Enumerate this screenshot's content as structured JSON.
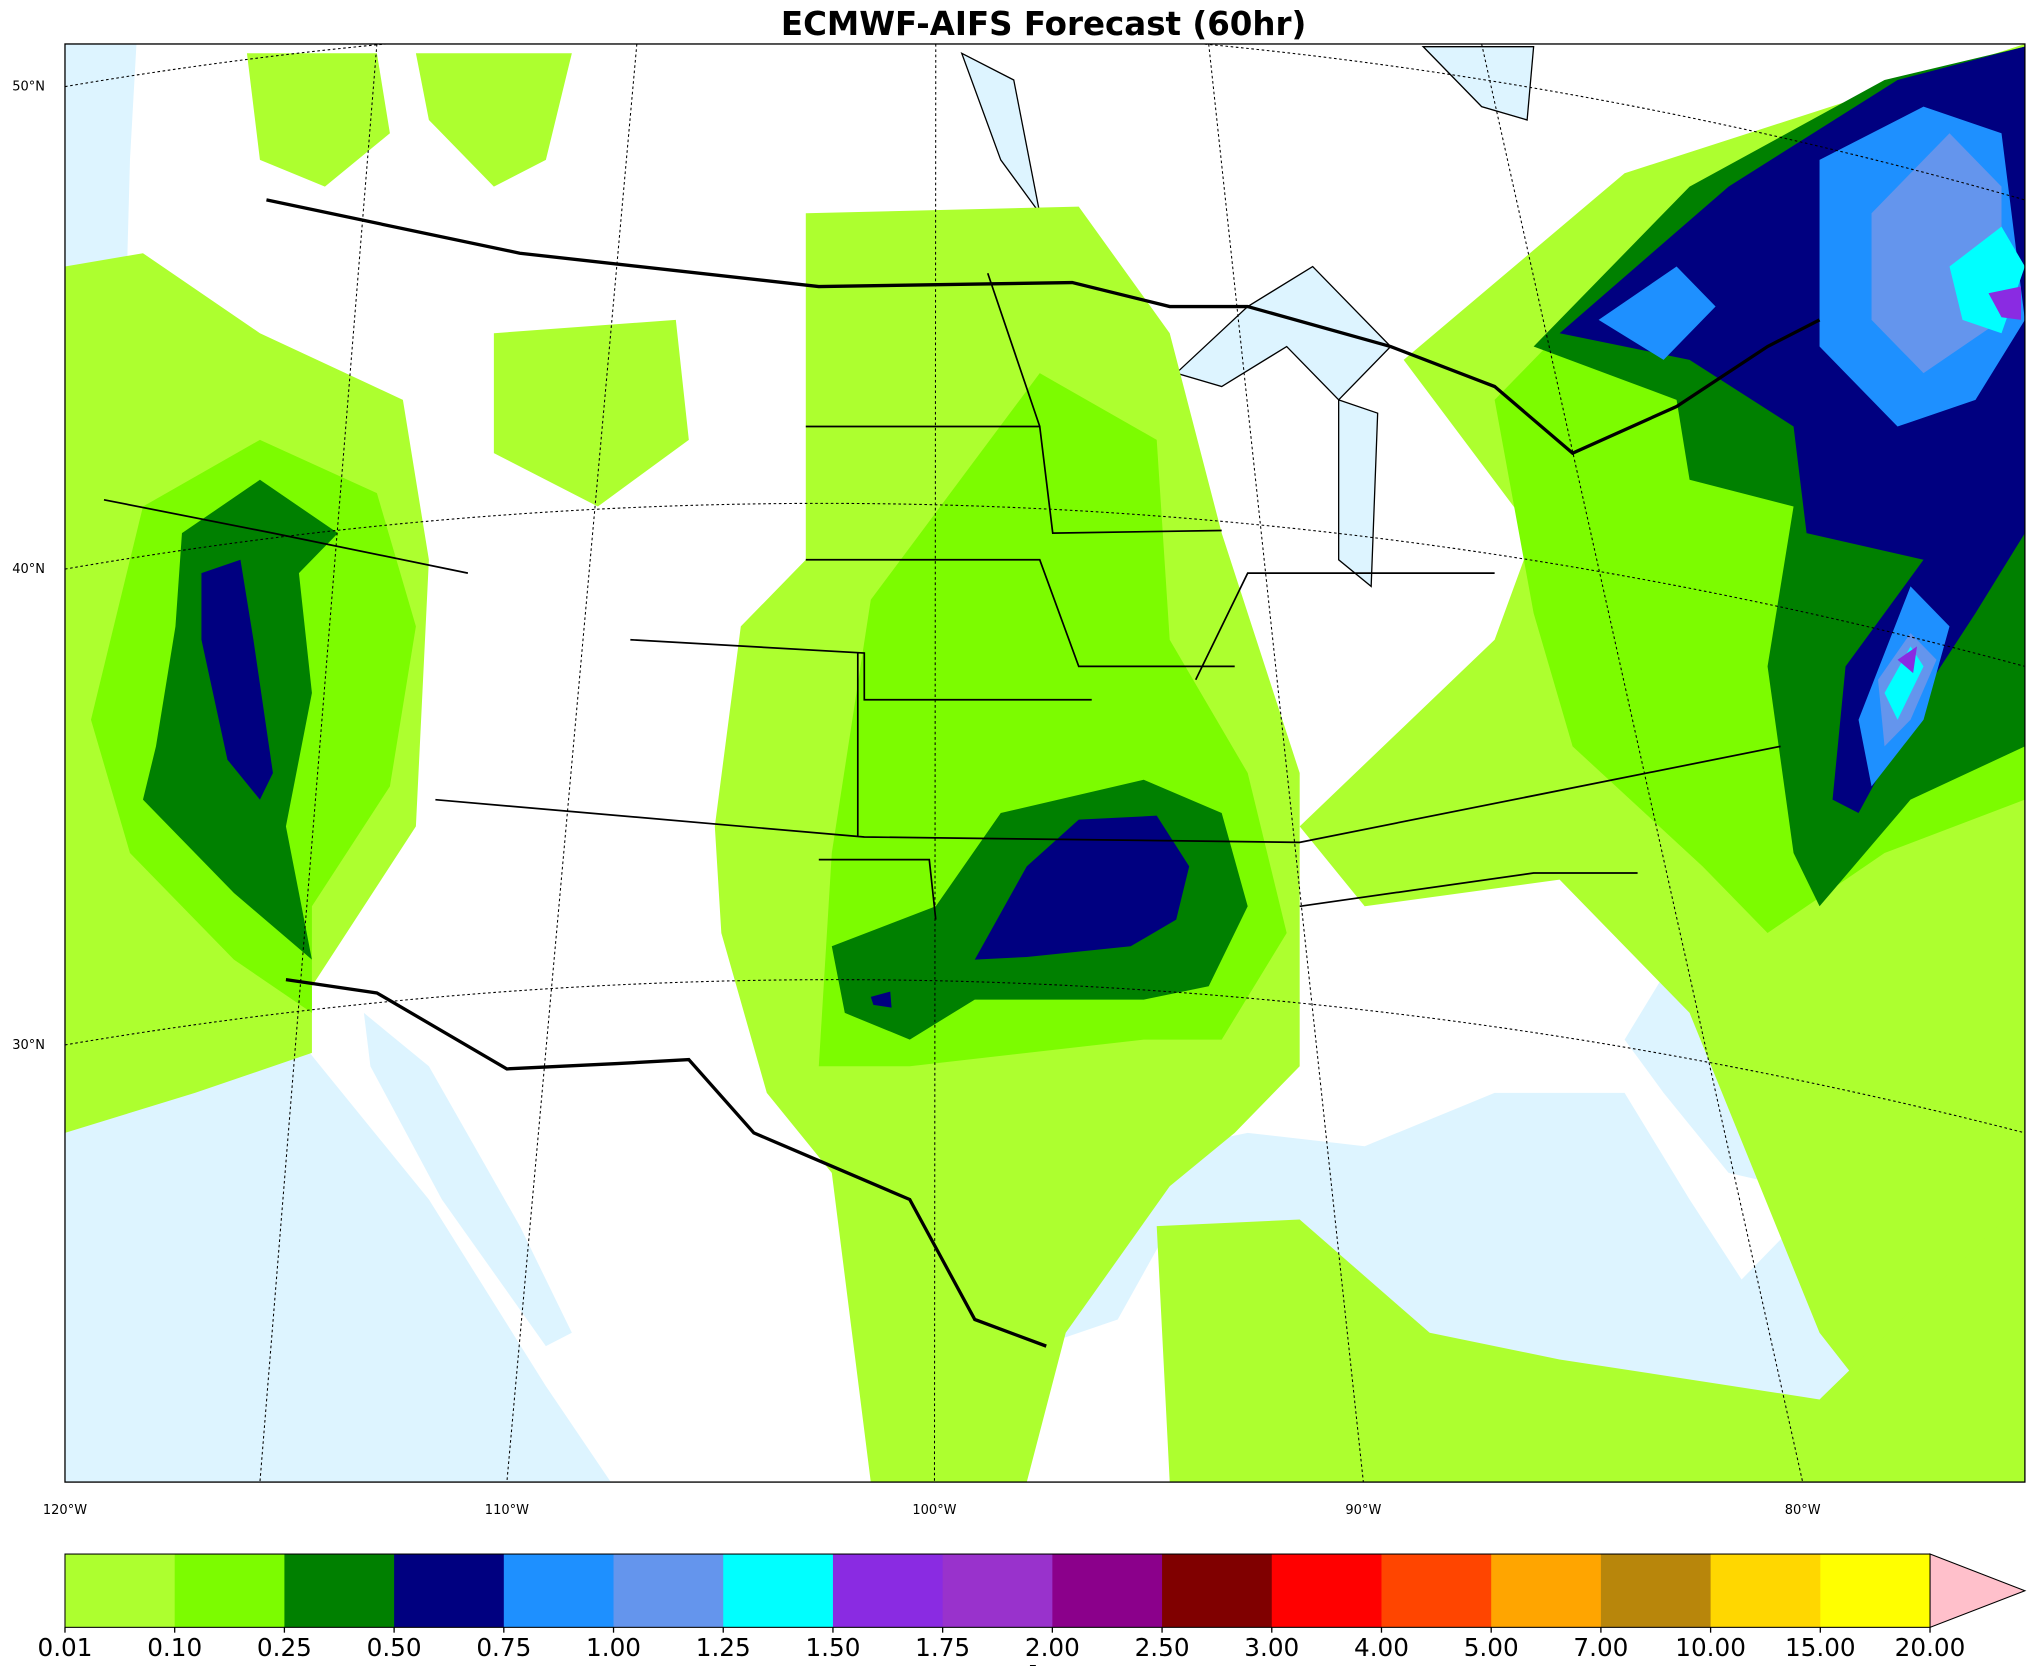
{
  "title": "ECMWF-AIFS Forecast (60hr)",
  "map": {
    "latitude_labels": [
      "50°N",
      "40°N",
      "30°N"
    ],
    "longitude_labels": [
      "120°W",
      "110°W",
      "100°W",
      "90°W",
      "80°W"
    ]
  },
  "colorbar": {
    "label": "in",
    "ticks": [
      "0.01",
      "0.10",
      "0.25",
      "0.50",
      "0.75",
      "1.00",
      "1.25",
      "1.50",
      "1.75",
      "2.00",
      "2.50",
      "3.00",
      "4.00",
      "5.00",
      "7.00",
      "10.00",
      "15.00",
      "20.00"
    ],
    "colors": [
      "#adff2f",
      "#7cfc00",
      "#008000",
      "#000080",
      "#1e90ff",
      "#6495ed",
      "#00ffff",
      "#8a2be2",
      "#9932cc",
      "#8b008b",
      "#800000",
      "#ff0000",
      "#ff4500",
      "#ffa500",
      "#b8860b",
      "#ffd700",
      "#ffff00"
    ],
    "extend_color": "#ffc0cb"
  }
}
